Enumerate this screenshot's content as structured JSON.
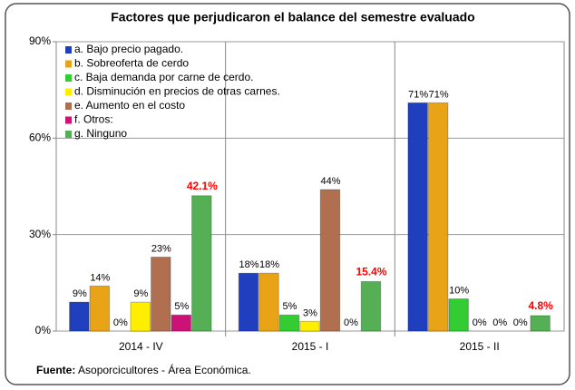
{
  "chart_data": {
    "type": "bar",
    "title": "Factores que perjudicaron el balance del semestre evaluado",
    "categories": [
      "2014 - IV",
      "2015 - I",
      "2015 - II"
    ],
    "series": [
      {
        "name": "a. Bajo precio pagado.",
        "color": "#1f3fbf",
        "label_color": "#000000",
        "values": [
          9,
          18,
          71
        ],
        "value_labels": [
          "9%",
          "18%",
          "71%"
        ]
      },
      {
        "name": "b. Sobreoferta de cerdo",
        "color": "#e8a317",
        "label_color": "#000000",
        "values": [
          14,
          18,
          71
        ],
        "value_labels": [
          "14%",
          "18%",
          "71%"
        ]
      },
      {
        "name": "c. Baja demanda por carne de cerdo.",
        "color": "#33cc33",
        "label_color": "#000000",
        "values": [
          0,
          5,
          10
        ],
        "value_labels": [
          "0%",
          "5%",
          "10%"
        ]
      },
      {
        "name": "d. Disminución en precios de otras carnes.",
        "color": "#ffee00",
        "label_color": "#000000",
        "values": [
          9,
          3,
          0
        ],
        "value_labels": [
          "9%",
          "3%",
          "0%"
        ]
      },
      {
        "name": "e. Aumento en el costo",
        "color": "#b07050",
        "label_color": "#000000",
        "values": [
          23,
          44,
          0
        ],
        "value_labels": [
          "23%",
          "44%",
          "0%"
        ]
      },
      {
        "name": "f. Otros:",
        "color": "#cc1177",
        "label_color": "#000000",
        "values": [
          5,
          0,
          0
        ],
        "value_labels": [
          "5%",
          "0%",
          "0%"
        ]
      },
      {
        "name": "g. Ninguno",
        "color": "#55b055",
        "label_color": "#ff0000",
        "values": [
          42.1,
          15.4,
          4.8
        ],
        "value_labels": [
          "42.1%",
          "15.4%",
          "4.8%"
        ]
      }
    ],
    "ylim": [
      0,
      90
    ],
    "yticks": [
      {
        "value": 0,
        "label": "0%"
      },
      {
        "value": 30,
        "label": "30%"
      },
      {
        "value": 60,
        "label": "60%"
      },
      {
        "value": 90,
        "label": "90%"
      }
    ],
    "grid": true,
    "legend": "upper left",
    "source_label": "Fuente:",
    "source_text": "Asoporcicultores - Área Económica."
  }
}
